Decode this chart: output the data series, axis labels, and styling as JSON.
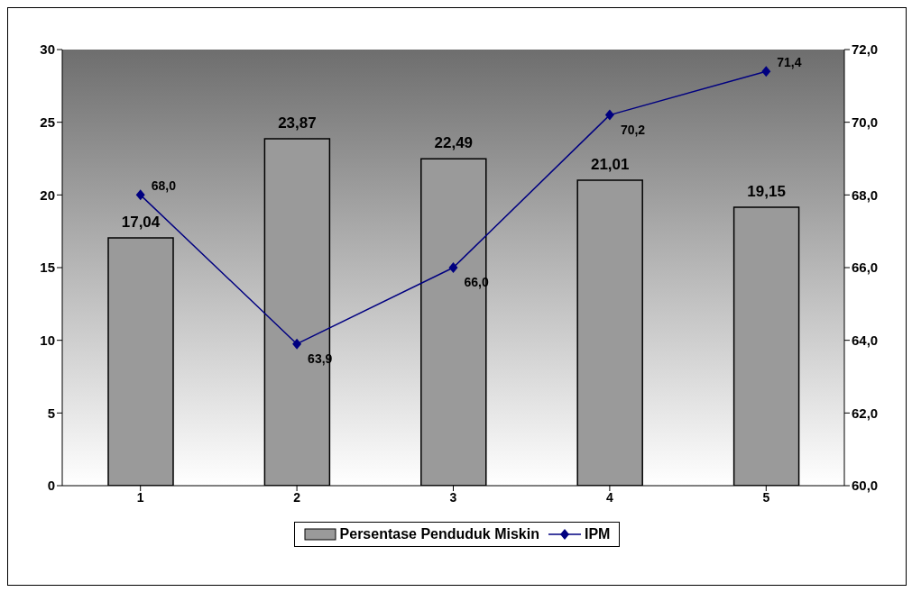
{
  "chart_data": {
    "type": "bar",
    "categories": [
      "1",
      "2",
      "3",
      "4",
      "5"
    ],
    "series": [
      {
        "name": "Persentase Penduduk Miskin",
        "color": "#9a9a9a",
        "values": [
          17.04,
          23.87,
          22.49,
          21.01,
          19.15
        ],
        "value_labels": [
          "17,04",
          "23,87",
          "22,49",
          "21,01",
          "19,15"
        ]
      },
      {
        "name": "IPM",
        "type": "line",
        "axis": "y2",
        "color": "#000080",
        "values": [
          68.0,
          63.9,
          66.0,
          70.2,
          71.4
        ],
        "value_labels": [
          "68,0",
          "63,9",
          "66,0",
          "70,2",
          "71,4"
        ]
      }
    ],
    "ylim": [
      0,
      30
    ],
    "yticks": [
      0,
      5,
      10,
      15,
      20,
      25,
      30
    ],
    "y2lim": [
      60,
      72
    ],
    "y2ticks": [
      {
        "value": 60,
        "label": "60,0"
      },
      {
        "value": 62,
        "label": "62,0"
      },
      {
        "value": 64,
        "label": "64,0"
      },
      {
        "value": 66,
        "label": "66,0"
      },
      {
        "value": 68,
        "label": "68,0"
      },
      {
        "value": 70,
        "label": "70,0"
      },
      {
        "value": 72,
        "label": "72,0"
      }
    ],
    "legend": "bottom",
    "marker": "diamond",
    "line_style": "solid"
  }
}
